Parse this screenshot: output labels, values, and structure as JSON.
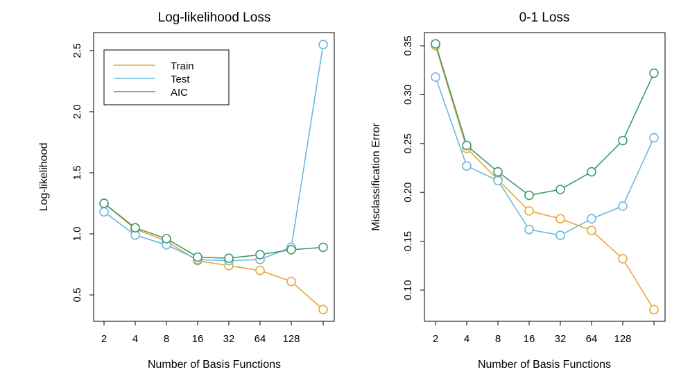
{
  "colors": {
    "train": "#E8A838",
    "test": "#6CB8E0",
    "aic": "#3E9A70",
    "axis": "#000000"
  },
  "chart_data": [
    {
      "type": "line",
      "title": "Log-likelihood Loss",
      "xlabel": "Number of Basis Functions",
      "ylabel": "Log-likelihood",
      "x_ticklabels": [
        "2",
        "4",
        "8",
        "16",
        "32",
        "64",
        "128"
      ],
      "x_positions": [
        2,
        4,
        8,
        16,
        32,
        64,
        128,
        256
      ],
      "x_scale": "log2",
      "yticks": [
        "0.5",
        "1.0",
        "1.5",
        "2.0",
        "2.5"
      ],
      "ylim": [
        0.38,
        2.55
      ],
      "legend": {
        "position": "top-left",
        "entries": [
          "Train",
          "Test",
          "AIC"
        ]
      },
      "series": [
        {
          "name": "Train",
          "color_key": "train",
          "values": [
            1.25,
            1.04,
            0.94,
            0.78,
            0.74,
            0.7,
            0.61,
            0.38
          ]
        },
        {
          "name": "Test",
          "color_key": "test",
          "values": [
            1.18,
            0.99,
            0.91,
            0.79,
            0.78,
            0.79,
            0.89,
            2.55
          ]
        },
        {
          "name": "AIC",
          "color_key": "aic",
          "values": [
            1.25,
            1.05,
            0.96,
            0.81,
            0.8,
            0.83,
            0.87,
            0.89
          ]
        }
      ]
    },
    {
      "type": "line",
      "title": "0-1 Loss",
      "xlabel": "Number of Basis Functions",
      "ylabel": "Misclassification Error",
      "x_ticklabels": [
        "2",
        "4",
        "8",
        "16",
        "32",
        "64",
        "128"
      ],
      "x_positions": [
        2,
        4,
        8,
        16,
        32,
        64,
        128,
        256
      ],
      "x_scale": "log2",
      "yticks": [
        "0.10",
        "0.15",
        "0.20",
        "0.25",
        "0.30",
        "0.35"
      ],
      "ylim": [
        0.08,
        0.352
      ],
      "series": [
        {
          "name": "Train",
          "color_key": "train",
          "values": [
            0.35,
            0.245,
            0.213,
            0.181,
            0.173,
            0.161,
            0.132,
            0.08
          ]
        },
        {
          "name": "Test",
          "color_key": "test",
          "values": [
            0.318,
            0.227,
            0.212,
            0.162,
            0.156,
            0.173,
            0.186,
            0.256
          ]
        },
        {
          "name": "AIC",
          "color_key": "aic",
          "values": [
            0.352,
            0.248,
            0.221,
            0.197,
            0.203,
            0.221,
            0.253,
            0.322
          ]
        }
      ]
    }
  ]
}
